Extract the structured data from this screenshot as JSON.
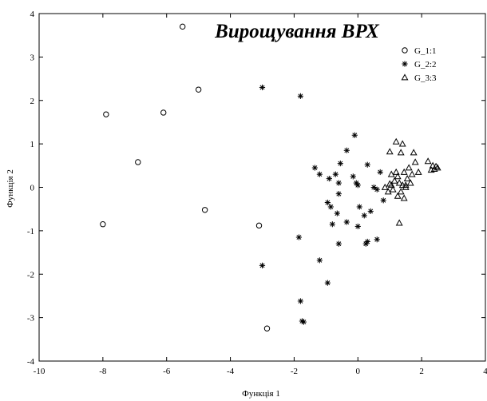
{
  "chart_data": {
    "type": "scatter",
    "title": "Вирощування ВРХ",
    "xlabel": "Функція 1",
    "ylabel": "Функція 2",
    "xlim": [
      -10,
      4
    ],
    "ylim": [
      -4,
      4
    ],
    "xticks": [
      "-10",
      "-8",
      "-6",
      "-4",
      "-2",
      "0",
      "2",
      "4"
    ],
    "yticks": [
      "4",
      "3",
      "2",
      "1",
      "0",
      "-1",
      "-2",
      "-3",
      "-4"
    ],
    "grid": false,
    "legend": "top-right",
    "series": [
      {
        "name": "G_1:1",
        "marker": "circle",
        "x": [
          -5.5,
          -5.0,
          -7.9,
          -6.1,
          -6.9,
          -4.8,
          -8.0,
          -3.1,
          -2.85
        ],
        "y": [
          3.7,
          2.25,
          1.68,
          1.72,
          0.58,
          -0.52,
          -0.85,
          -0.88,
          -3.25
        ]
      },
      {
        "name": "G_2:2",
        "marker": "star",
        "x": [
          -3.0,
          -1.8,
          -0.1,
          -0.35,
          -1.35,
          -1.2,
          -0.55,
          -0.7,
          -0.9,
          -0.6,
          -0.15,
          -0.05,
          0.0,
          0.3,
          0.7,
          0.5,
          0.6,
          -0.95,
          -0.85,
          -0.65,
          -0.35,
          0.05,
          0.2,
          0.4,
          0.8,
          -0.8,
          -0.6,
          0.0,
          0.25,
          0.6,
          -1.85,
          -1.2,
          -3.0,
          -0.95,
          -1.8,
          -1.75,
          -1.7,
          0.3,
          -0.6
        ],
        "y": [
          2.3,
          2.1,
          1.2,
          0.85,
          0.45,
          0.3,
          0.55,
          0.3,
          0.2,
          0.1,
          0.25,
          0.1,
          0.05,
          0.52,
          0.35,
          0.0,
          -0.05,
          -0.35,
          -0.45,
          -0.6,
          -0.8,
          -0.45,
          -0.65,
          -0.55,
          -0.3,
          -0.85,
          -1.3,
          -0.9,
          -1.3,
          -1.2,
          -1.15,
          -1.68,
          -1.8,
          -2.2,
          -2.62,
          -3.08,
          -3.1,
          -1.25,
          -0.15
        ]
      },
      {
        "name": "G_3:3",
        "marker": "triangle",
        "x": [
          1.2,
          1.4,
          1.0,
          1.35,
          1.75,
          2.2,
          1.8,
          1.6,
          2.35,
          2.45,
          2.5,
          2.3,
          1.2,
          1.05,
          1.45,
          1.25,
          1.55,
          1.15,
          1.3,
          1.0,
          1.4,
          1.7,
          1.9,
          1.65,
          1.5,
          1.1,
          0.95,
          1.35,
          1.25,
          1.05,
          1.5,
          0.85,
          1.45,
          2.4,
          1.3
        ],
        "y": [
          1.05,
          1.0,
          0.82,
          0.8,
          0.8,
          0.6,
          0.58,
          0.45,
          0.5,
          0.48,
          0.45,
          0.4,
          0.35,
          0.3,
          0.35,
          0.25,
          0.2,
          0.15,
          0.1,
          0.08,
          0.05,
          0.3,
          0.35,
          0.1,
          0.0,
          -0.05,
          -0.1,
          -0.1,
          -0.2,
          0.05,
          0.05,
          0.0,
          -0.25,
          0.42,
          -0.82
        ]
      }
    ]
  }
}
